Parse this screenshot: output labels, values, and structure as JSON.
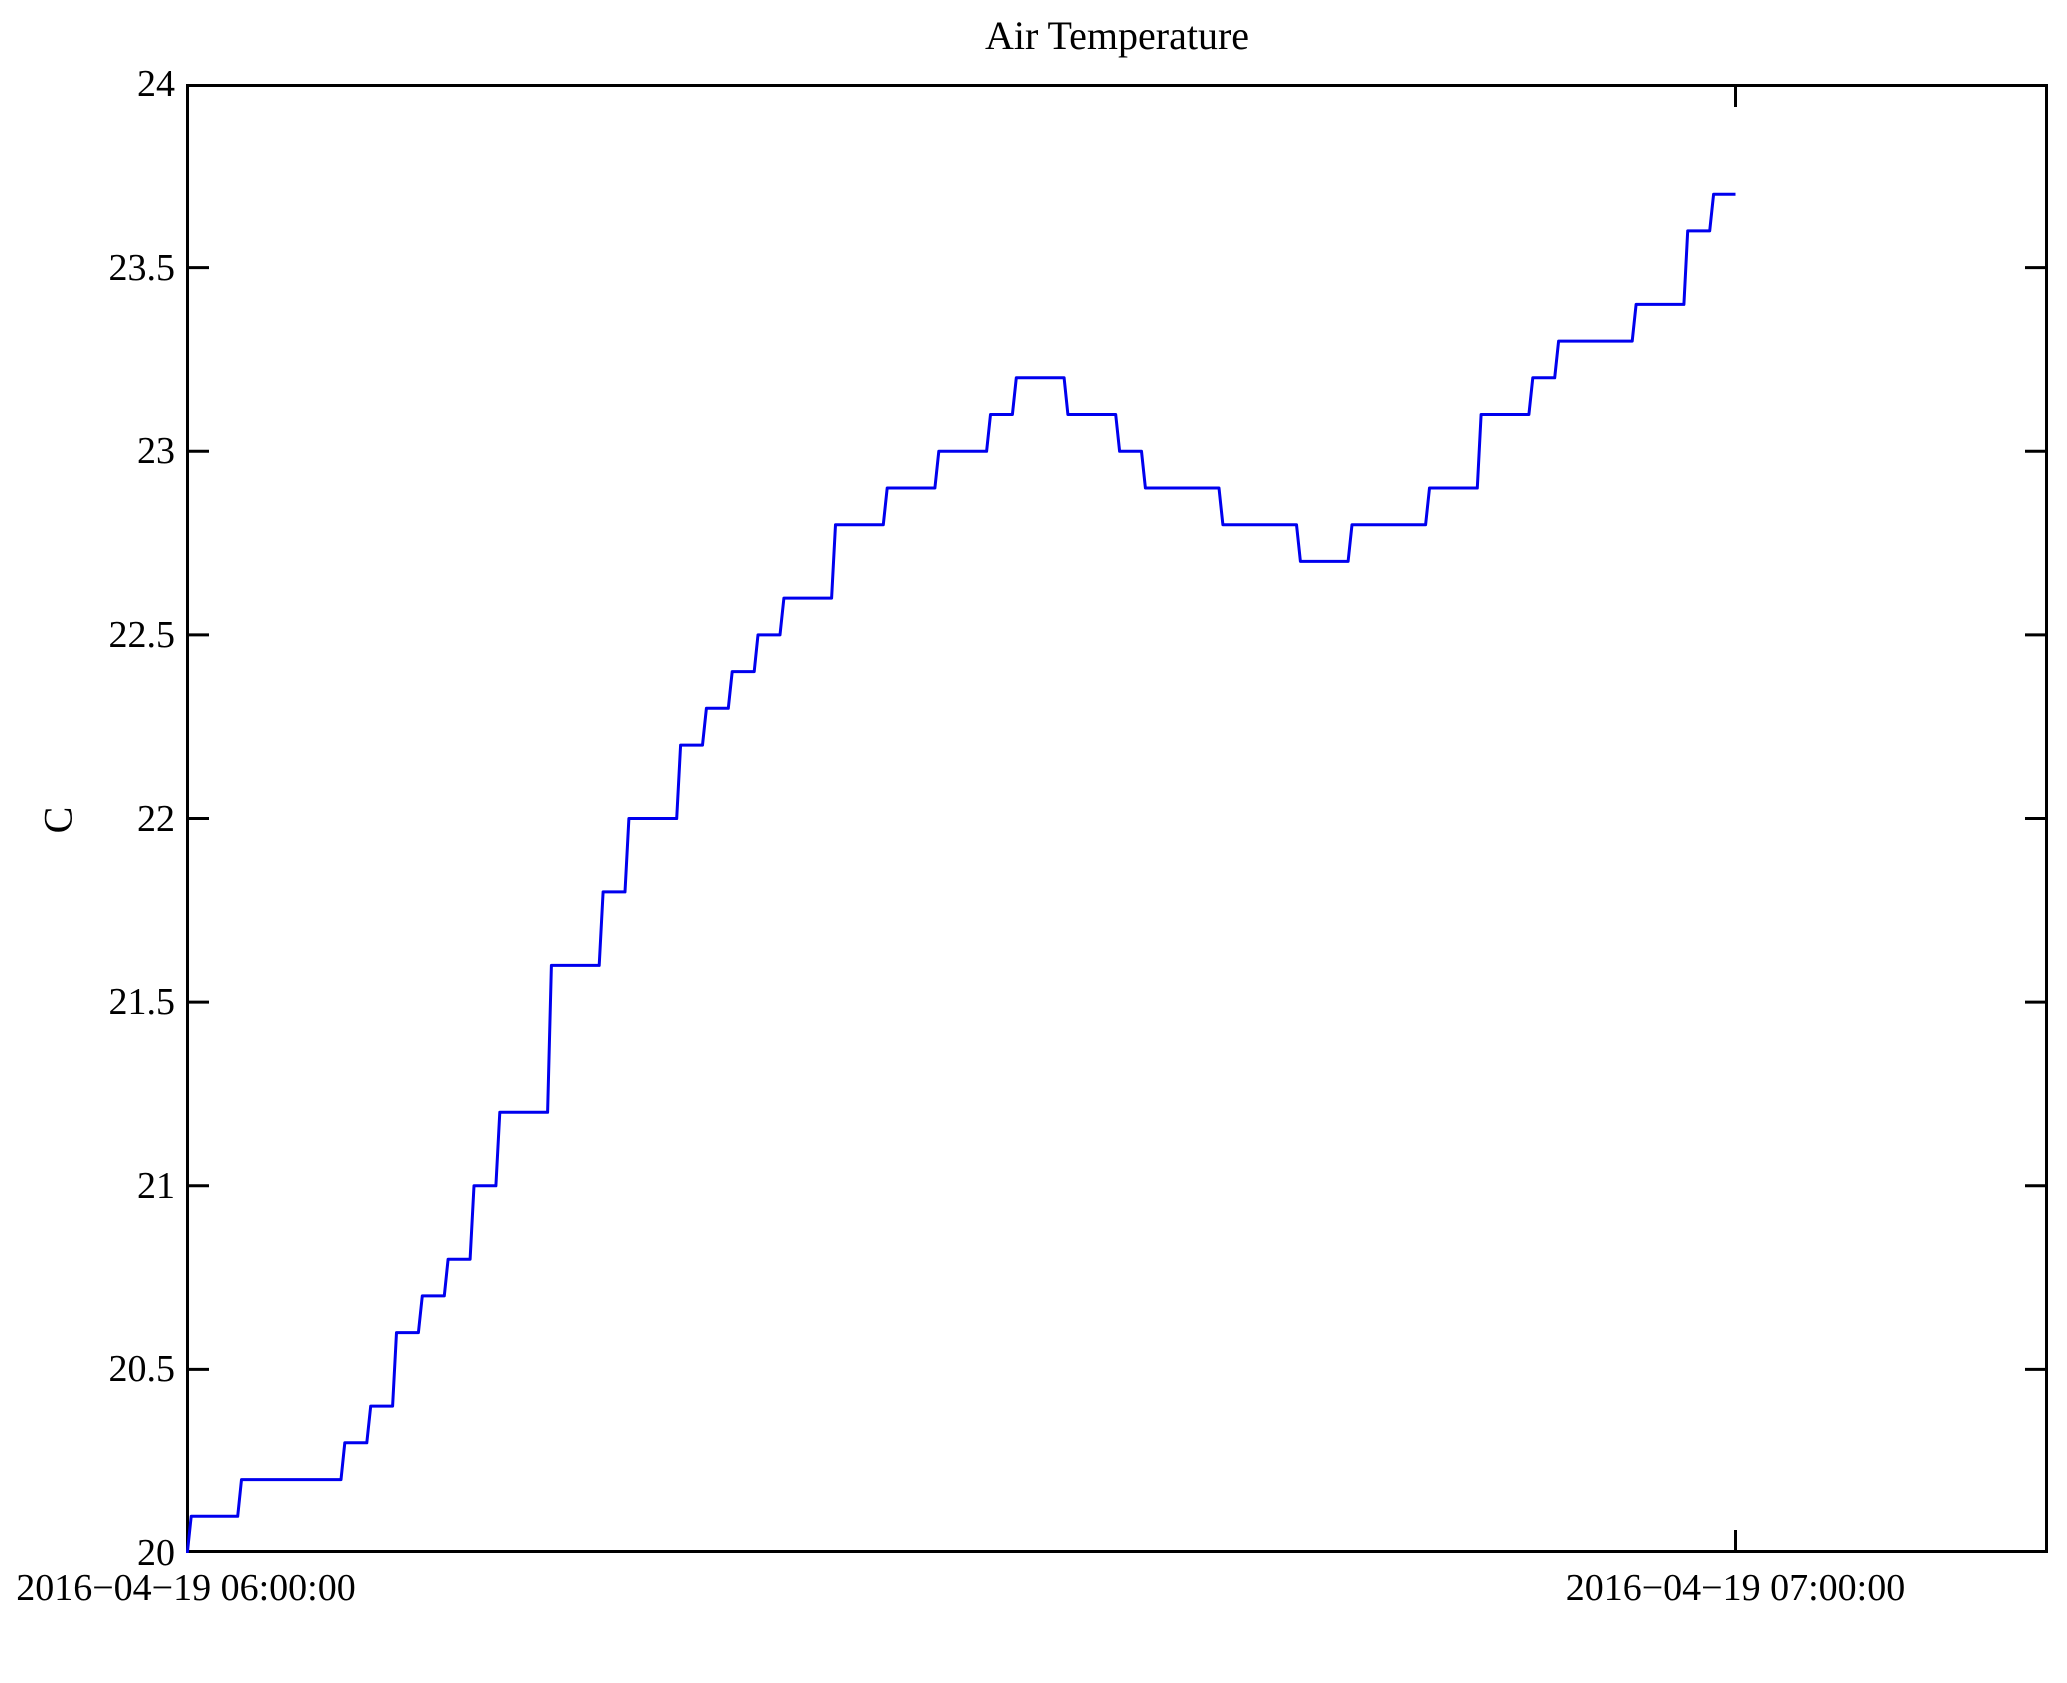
{
  "figure": {
    "background": "#ffffff",
    "frame_color": "#000000",
    "tick_color": "#000000",
    "text_color": "#000000"
  },
  "chart_data": {
    "type": "line",
    "style": "step-post",
    "title": "Air Temperature",
    "xlabel": "",
    "ylabel": "C",
    "grid": false,
    "legend": null,
    "ylim": [
      20,
      24
    ],
    "y_ticks": [
      20,
      20.5,
      21,
      21.5,
      22,
      22.5,
      23,
      23.5,
      24
    ],
    "x_tick_labels": [
      "2016−04−19 06:00:00",
      "2016−04−19 07:00:00"
    ],
    "x_tick_minutes": [
      0,
      60
    ],
    "x_range_minutes": [
      0,
      72.1
    ],
    "series": [
      {
        "name": "air-temperature",
        "color": "#0000ee",
        "units": "C",
        "start_time": "2016-04-19 06:00:00",
        "end_minute": 60,
        "points_step_minutes": [
          [
            0,
            20.0
          ],
          [
            0.05,
            20.1
          ],
          [
            2,
            20.2
          ],
          [
            6,
            20.3
          ],
          [
            7,
            20.4
          ],
          [
            8,
            20.6
          ],
          [
            9,
            20.7
          ],
          [
            10,
            20.8
          ],
          [
            11,
            21.0
          ],
          [
            12,
            21.2
          ],
          [
            14,
            21.6
          ],
          [
            16,
            21.8
          ],
          [
            17,
            22.0
          ],
          [
            19,
            22.2
          ],
          [
            20,
            22.3
          ],
          [
            21,
            22.4
          ],
          [
            22,
            22.5
          ],
          [
            23,
            22.6
          ],
          [
            25,
            22.8
          ],
          [
            27,
            22.9
          ],
          [
            29,
            23.0
          ],
          [
            31,
            23.1
          ],
          [
            32,
            23.2
          ],
          [
            34,
            23.1
          ],
          [
            36,
            23.0
          ],
          [
            37,
            22.9
          ],
          [
            40,
            22.8
          ],
          [
            43,
            22.7
          ],
          [
            45,
            22.8
          ],
          [
            48,
            22.9
          ],
          [
            50,
            23.1
          ],
          [
            52,
            23.2
          ],
          [
            53,
            23.3
          ],
          [
            56,
            23.4
          ],
          [
            58,
            23.6
          ],
          [
            59,
            23.7
          ]
        ]
      }
    ]
  }
}
